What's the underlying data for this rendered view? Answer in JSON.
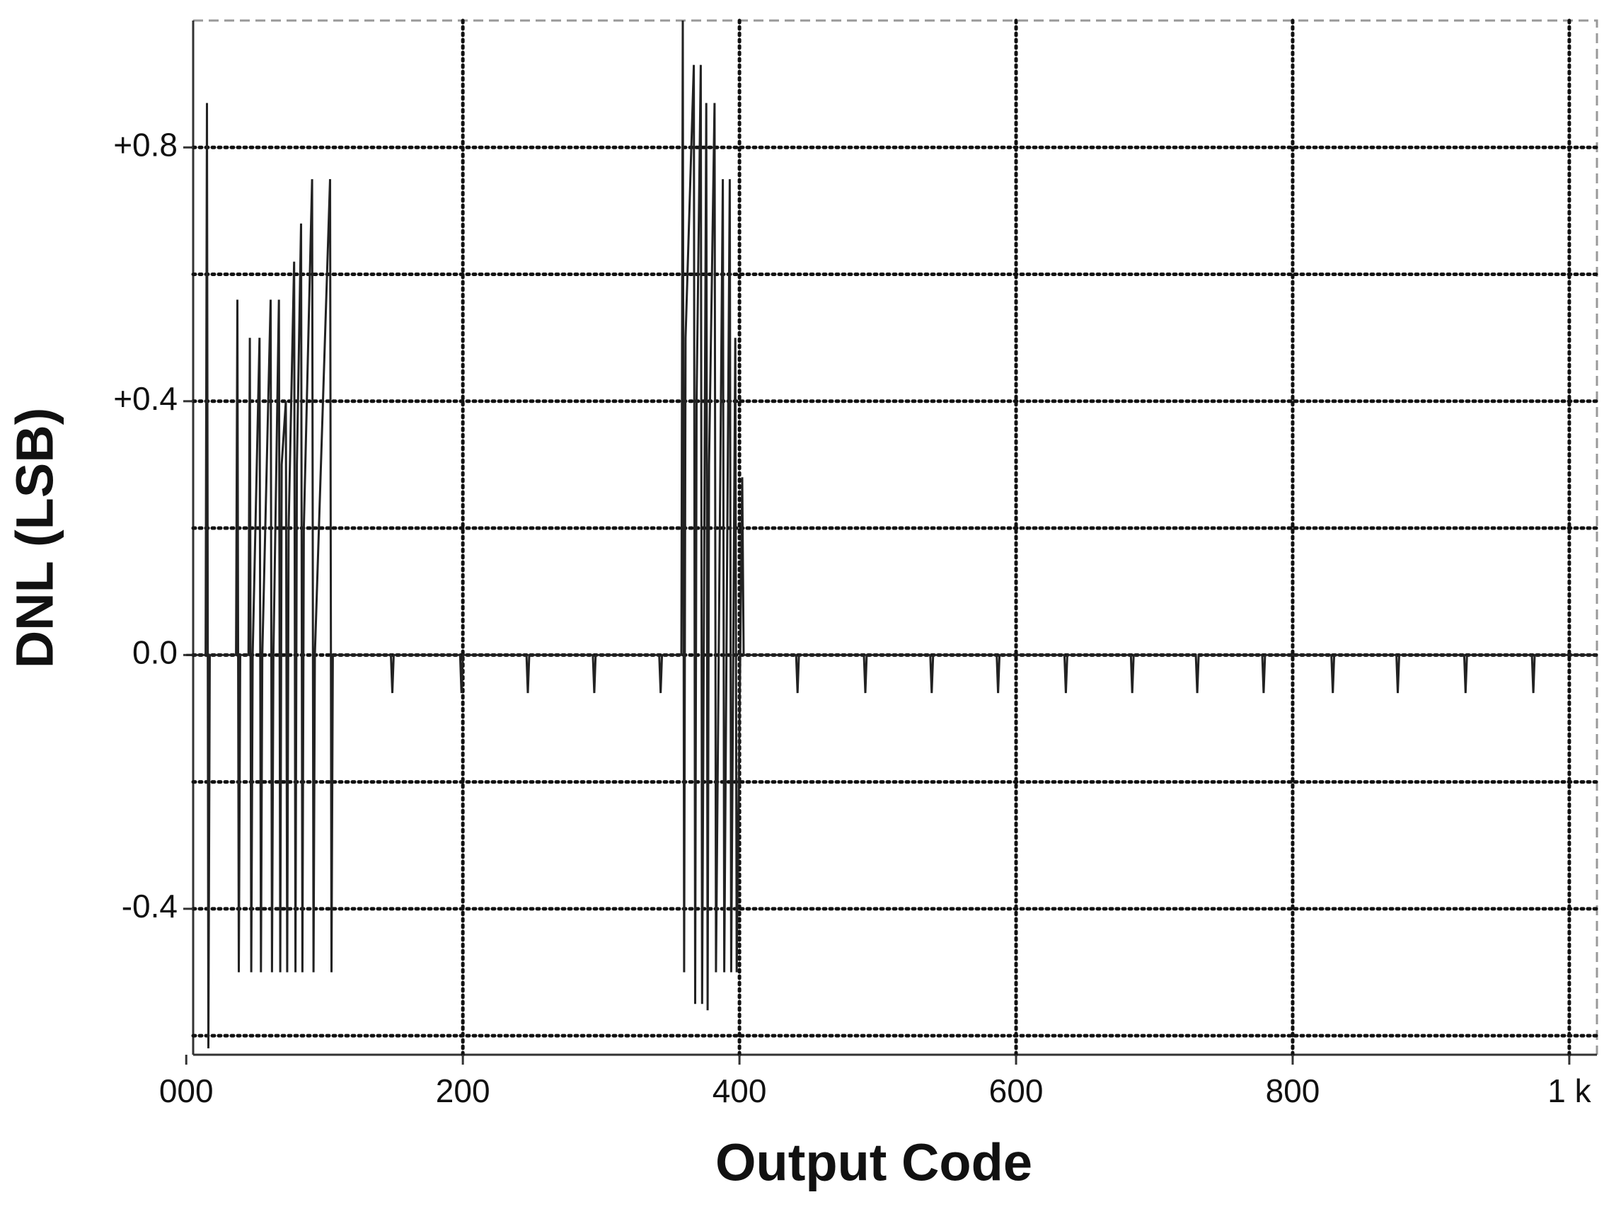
{
  "chart_data": {
    "type": "line",
    "x_label": "Output Code",
    "y_label": "DNL (LSB)",
    "x": [
      0,
      14,
      15,
      16,
      17,
      36,
      37,
      38,
      39,
      45,
      46,
      47,
      48,
      53,
      54,
      55,
      61,
      62,
      63,
      67,
      68,
      69,
      72,
      73,
      74,
      78,
      79,
      80,
      83,
      84,
      85,
      91,
      92,
      93,
      104,
      105,
      106,
      148,
      149,
      150,
      198,
      199,
      200,
      246,
      247,
      248,
      294,
      295,
      296,
      342,
      343,
      344,
      358,
      359,
      360,
      361,
      367,
      368,
      369,
      372,
      373,
      376,
      377,
      378,
      382,
      383,
      388,
      389,
      393,
      394,
      397,
      398,
      402,
      403,
      441,
      442,
      443,
      490,
      491,
      492,
      538,
      539,
      540,
      586,
      587,
      588,
      635,
      636,
      637,
      683,
      684,
      685,
      730,
      731,
      732,
      778,
      779,
      780,
      828,
      829,
      830,
      875,
      876,
      877,
      924,
      925,
      926,
      973,
      974,
      975,
      1020
    ],
    "values": [
      0,
      0,
      0.87,
      -0.62,
      0,
      0,
      0.56,
      -0.5,
      0,
      0,
      0.5,
      -0.5,
      0,
      0.5,
      -0.5,
      0,
      0.56,
      -0.5,
      0,
      0.56,
      -0.5,
      0.3,
      0.4,
      -0.5,
      0.2,
      0.62,
      -0.5,
      0.3,
      0.68,
      -0.5,
      0.2,
      0.75,
      -0.5,
      0,
      0.75,
      -0.5,
      0,
      0,
      -0.06,
      0,
      0,
      -0.06,
      0,
      0,
      -0.06,
      0,
      0,
      -0.06,
      0,
      0,
      -0.06,
      0,
      0,
      1.0,
      -0.5,
      0.5,
      0.93,
      -0.55,
      0.4,
      0.93,
      -0.55,
      0.87,
      -0.56,
      0.3,
      0.87,
      -0.5,
      0.75,
      -0.5,
      0.75,
      -0.5,
      0.5,
      -0.5,
      0.28,
      0,
      0,
      -0.06,
      0,
      0,
      -0.06,
      0,
      0,
      -0.06,
      0,
      0,
      -0.06,
      0,
      0,
      -0.06,
      0,
      0,
      -0.06,
      0,
      0,
      -0.06,
      0,
      0,
      -0.06,
      0,
      0,
      -0.06,
      0,
      0,
      -0.06,
      0,
      0,
      -0.06,
      0,
      0,
      -0.06,
      0,
      0
    ],
    "color": "#222222",
    "xlim": [
      5,
      1020
    ],
    "ylim": [
      -0.63,
      1.0
    ],
    "xticks": [
      {
        "value": 0,
        "label": "000"
      },
      200,
      400,
      600,
      800,
      {
        "value": 1000,
        "label": "1 k"
      }
    ],
    "yticks": [
      {
        "value": -0.4,
        "label": "-0.4"
      },
      {
        "value": 0,
        "label": "0.0"
      },
      {
        "value": 0.4,
        "label": "+0.4"
      },
      {
        "value": 0.8,
        "label": "+0.8"
      }
    ],
    "ygrid": [
      -0.6,
      -0.4,
      -0.2,
      0,
      0.2,
      0.4,
      0.6,
      0.8
    ],
    "grid": true
  }
}
